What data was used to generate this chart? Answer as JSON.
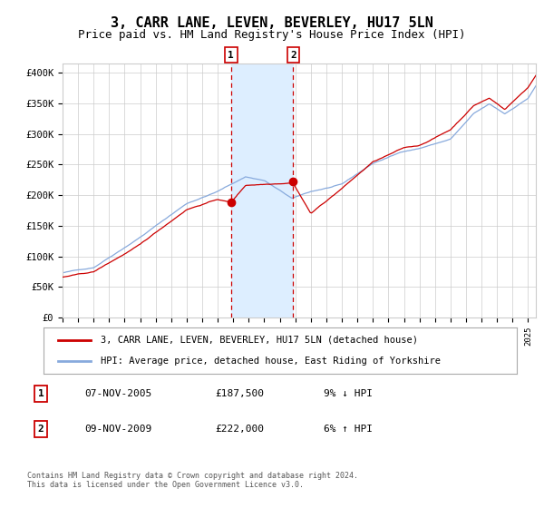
{
  "title": "3, CARR LANE, LEVEN, BEVERLEY, HU17 5LN",
  "subtitle": "Price paid vs. HM Land Registry's House Price Index (HPI)",
  "title_fontsize": 11,
  "subtitle_fontsize": 9,
  "ylabel_ticks": [
    "£0",
    "£50K",
    "£100K",
    "£150K",
    "£200K",
    "£250K",
    "£300K",
    "£350K",
    "£400K"
  ],
  "ytick_values": [
    0,
    50000,
    100000,
    150000,
    200000,
    250000,
    300000,
    350000,
    400000
  ],
  "ylim": [
    0,
    415000
  ],
  "year_start": 1995,
  "year_end": 2025,
  "sale1_year": 2005.856,
  "sale1_price": 187500,
  "sale2_year": 2009.856,
  "sale2_price": 222000,
  "sale1_date": "07-NOV-2005",
  "sale2_date": "09-NOV-2009",
  "sale1_hpi_pct": "9%",
  "sale1_hpi_dir": "↓",
  "sale2_hpi_pct": "6%",
  "sale2_hpi_dir": "↑",
  "line_color_property": "#cc0000",
  "line_color_hpi": "#88aadd",
  "sale_dot_color": "#cc0000",
  "shade_color": "#ddeeff",
  "dashed_line_color": "#cc0000",
  "legend_label_property": "3, CARR LANE, LEVEN, BEVERLEY, HU17 5LN (detached house)",
  "legend_label_hpi": "HPI: Average price, detached house, East Riding of Yorkshire",
  "footnote": "Contains HM Land Registry data © Crown copyright and database right 2024.\nThis data is licensed under the Open Government Licence v3.0.",
  "grid_color": "#cccccc",
  "bg_color": "#ffffff"
}
